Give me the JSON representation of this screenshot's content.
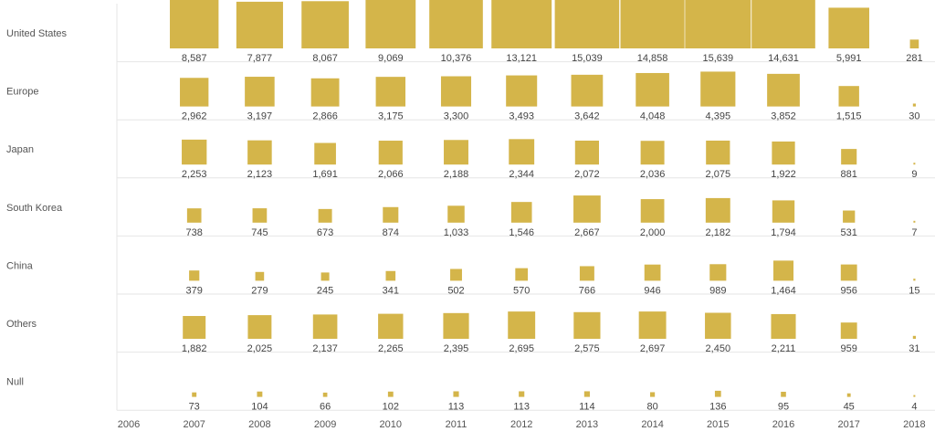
{
  "chart_data": {
    "type": "table",
    "mark": "square",
    "mark_color": "#d4b54a",
    "years": [
      "2006",
      "2007",
      "2008",
      "2009",
      "2010",
      "2011",
      "2012",
      "2013",
      "2014",
      "2015",
      "2016",
      "2017",
      "2018"
    ],
    "rows": [
      {
        "name": "United States",
        "values": [
          null,
          8587,
          7877,
          8067,
          9069,
          10376,
          13121,
          15039,
          14858,
          15639,
          14631,
          5991,
          281
        ],
        "labels": [
          "",
          "8,587",
          "7,877",
          "8,067",
          "9,069",
          "10,376",
          "13,121",
          "15,039",
          "14,858",
          "15,639",
          "14,631",
          "5,991",
          "281"
        ]
      },
      {
        "name": "Europe",
        "values": [
          null,
          2962,
          3197,
          2866,
          3175,
          3300,
          3493,
          3642,
          4048,
          4395,
          3852,
          1515,
          30
        ],
        "labels": [
          "",
          "2,962",
          "3,197",
          "2,866",
          "3,175",
          "3,300",
          "3,493",
          "3,642",
          "4,048",
          "4,395",
          "3,852",
          "1,515",
          "30"
        ]
      },
      {
        "name": "Japan",
        "values": [
          null,
          2253,
          2123,
          1691,
          2066,
          2188,
          2344,
          2072,
          2036,
          2075,
          1922,
          881,
          9
        ],
        "labels": [
          "",
          "2,253",
          "2,123",
          "1,691",
          "2,066",
          "2,188",
          "2,344",
          "2,072",
          "2,036",
          "2,075",
          "1,922",
          "881",
          "9"
        ]
      },
      {
        "name": "South Korea",
        "values": [
          null,
          738,
          745,
          673,
          874,
          1033,
          1546,
          2667,
          2000,
          2182,
          1794,
          531,
          7
        ],
        "labels": [
          "",
          "738",
          "745",
          "673",
          "874",
          "1,033",
          "1,546",
          "2,667",
          "2,000",
          "2,182",
          "1,794",
          "531",
          "7"
        ]
      },
      {
        "name": "China",
        "values": [
          null,
          379,
          279,
          245,
          341,
          502,
          570,
          766,
          946,
          989,
          1464,
          956,
          15
        ],
        "labels": [
          "",
          "379",
          "279",
          "245",
          "341",
          "502",
          "570",
          "766",
          "946",
          "989",
          "1,464",
          "956",
          "15"
        ]
      },
      {
        "name": "Others",
        "values": [
          null,
          1882,
          2025,
          2137,
          2265,
          2395,
          2695,
          2575,
          2697,
          2450,
          2211,
          959,
          31
        ],
        "labels": [
          "",
          "1,882",
          "2,025",
          "2,137",
          "2,265",
          "2,395",
          "2,695",
          "2,575",
          "2,697",
          "2,450",
          "2,211",
          "959",
          "31"
        ]
      },
      {
        "name": "Null",
        "values": [
          null,
          73,
          104,
          66,
          102,
          113,
          113,
          114,
          80,
          136,
          95,
          45,
          4
        ],
        "labels": [
          "",
          "73",
          "104",
          "66",
          "102",
          "113",
          "113",
          "114",
          "80",
          "136",
          "95",
          "45",
          "4"
        ]
      }
    ]
  }
}
